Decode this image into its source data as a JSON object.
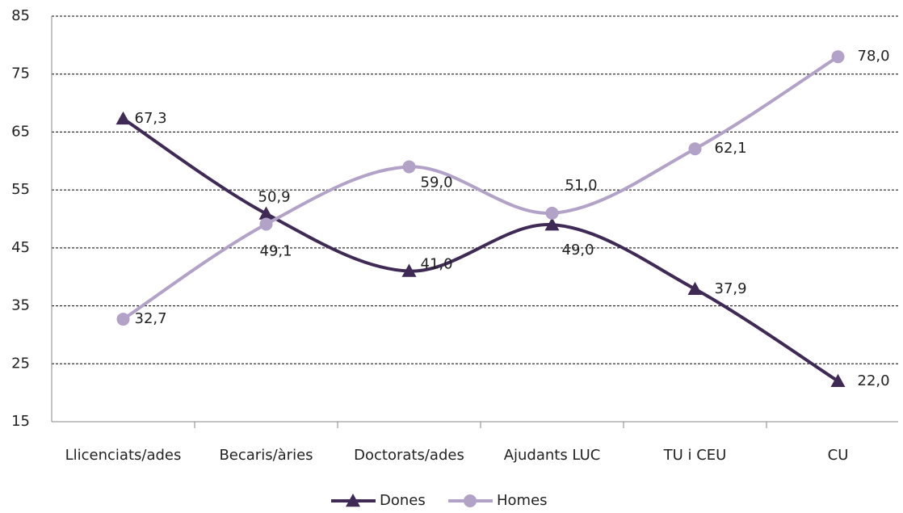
{
  "chart_data": {
    "type": "line",
    "categories": [
      "Llicenciats/ades",
      "Becaris/àries",
      "Doctorats/ades",
      "Ajudants LUC",
      "TU i CEU",
      "CU"
    ],
    "series": [
      {
        "name": "Dones",
        "color": "#3f2a56",
        "marker": "triangle",
        "values": [
          67.3,
          50.9,
          41.0,
          49.0,
          37.9,
          22.0
        ],
        "value_labels": [
          "67,3",
          "50,9",
          "41,0",
          "49,0",
          "37,9",
          "22,0"
        ]
      },
      {
        "name": "Homes",
        "color": "#b3a2c7",
        "marker": "circle",
        "values": [
          32.7,
          49.1,
          59.0,
          51.0,
          62.1,
          78.0
        ],
        "value_labels": [
          "32,7",
          "49,1",
          "59,0",
          "51,0",
          "62,1",
          "78,0"
        ]
      }
    ],
    "ylim": [
      15,
      85
    ],
    "yticks": [
      15,
      25,
      35,
      45,
      55,
      65,
      75,
      85
    ],
    "grid": true,
    "legend": "bottom"
  }
}
